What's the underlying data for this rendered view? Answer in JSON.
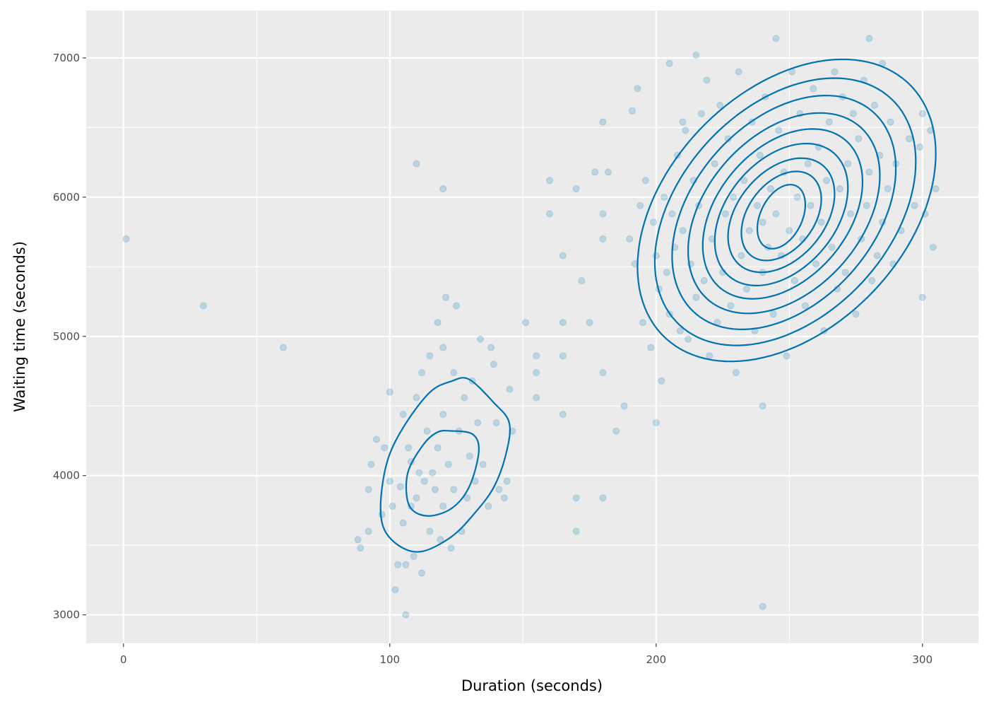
{
  "chart_data": {
    "type": "scatter",
    "title": "",
    "xlabel": "Duration (seconds)",
    "ylabel": "Waiting time (seconds)",
    "xlim": [
      -14,
      321
    ],
    "ylim": [
      2795,
      7340
    ],
    "x_ticks": [
      0,
      100,
      200,
      300
    ],
    "y_ticks": [
      3000,
      4000,
      5000,
      6000,
      7000
    ],
    "x_tick_labels": [
      "0",
      "100",
      "200",
      "300"
    ],
    "y_tick_labels": [
      "3000",
      "4000",
      "5000",
      "6000",
      "7000"
    ],
    "grid": true,
    "legend": "none",
    "colors": {
      "panel": "#EBEBEB",
      "grid": "#FFFFFF",
      "points": "#0072B2",
      "contour": "#0072B2"
    },
    "point_alpha": 0.2,
    "points": [
      [
        1,
        5700
      ],
      [
        30,
        5220
      ],
      [
        60,
        4920
      ],
      [
        110,
        6240
      ],
      [
        120,
        6060
      ],
      [
        151,
        5100
      ],
      [
        155,
        4560
      ],
      [
        155,
        4860
      ],
      [
        155,
        4740
      ],
      [
        160,
        6120
      ],
      [
        160,
        5880
      ],
      [
        165,
        5580
      ],
      [
        165,
        5100
      ],
      [
        165,
        4440
      ],
      [
        165,
        4860
      ],
      [
        170,
        3840
      ],
      [
        170,
        3600
      ],
      [
        170,
        6060
      ],
      [
        172,
        5400
      ],
      [
        175,
        5100
      ],
      [
        177,
        6180
      ],
      [
        180,
        6540
      ],
      [
        180,
        5700
      ],
      [
        180,
        5880
      ],
      [
        180,
        4740
      ],
      [
        180,
        3840
      ],
      [
        182,
        6180
      ],
      [
        185,
        4320
      ],
      [
        188,
        4500
      ],
      [
        193,
        6780
      ],
      [
        191,
        6620
      ],
      [
        200,
        4380
      ],
      [
        202,
        4680
      ],
      [
        205,
        6960
      ],
      [
        210,
        6540
      ],
      [
        215,
        7020
      ],
      [
        240,
        3060
      ],
      [
        240,
        4500
      ],
      [
        245,
        7140
      ],
      [
        280,
        7140
      ],
      [
        285,
        6960
      ],
      [
        300,
        6600
      ],
      [
        300,
        5280
      ],
      [
        304,
        5640
      ],
      [
        305,
        6060
      ],
      [
        303,
        6480
      ],
      [
        88,
        3540
      ],
      [
        89,
        3480
      ],
      [
        92,
        3900
      ],
      [
        92,
        3600
      ],
      [
        93,
        4080
      ],
      [
        95,
        4260
      ],
      [
        97,
        3720
      ],
      [
        98,
        4200
      ],
      [
        100,
        4600
      ],
      [
        100,
        3960
      ],
      [
        101,
        3780
      ],
      [
        102,
        3180
      ],
      [
        103,
        3360
      ],
      [
        104,
        3920
      ],
      [
        105,
        4440
      ],
      [
        105,
        3660
      ],
      [
        106,
        3000
      ],
      [
        106,
        3360
      ],
      [
        107,
        4200
      ],
      [
        108,
        3780
      ],
      [
        108,
        4100
      ],
      [
        109,
        3420
      ],
      [
        110,
        4560
      ],
      [
        110,
        3840
      ],
      [
        111,
        4020
      ],
      [
        112,
        4740
      ],
      [
        112,
        3300
      ],
      [
        113,
        3960
      ],
      [
        114,
        4320
      ],
      [
        115,
        3600
      ],
      [
        115,
        4860
      ],
      [
        116,
        4020
      ],
      [
        117,
        3900
      ],
      [
        118,
        4200
      ],
      [
        118,
        5100
      ],
      [
        119,
        3540
      ],
      [
        120,
        4920
      ],
      [
        120,
        3780
      ],
      [
        120,
        4440
      ],
      [
        121,
        5280
      ],
      [
        122,
        4080
      ],
      [
        123,
        3480
      ],
      [
        124,
        4740
      ],
      [
        124,
        3900
      ],
      [
        125,
        5220
      ],
      [
        126,
        4320
      ],
      [
        127,
        3600
      ],
      [
        128,
        4560
      ],
      [
        129,
        3840
      ],
      [
        130,
        4140
      ],
      [
        131,
        4680
      ],
      [
        132,
        3960
      ],
      [
        133,
        4380
      ],
      [
        134,
        4980
      ],
      [
        135,
        4080
      ],
      [
        137,
        3780
      ],
      [
        138,
        4920
      ],
      [
        139,
        4800
      ],
      [
        140,
        4380
      ],
      [
        141,
        3900
      ],
      [
        143,
        3840
      ],
      [
        144,
        3960
      ],
      [
        145,
        4620
      ],
      [
        146,
        4320
      ],
      [
        190,
        5700
      ],
      [
        192,
        5520
      ],
      [
        194,
        5940
      ],
      [
        195,
        5100
      ],
      [
        196,
        6120
      ],
      [
        198,
        4920
      ],
      [
        199,
        5820
      ],
      [
        200,
        5580
      ],
      [
        201,
        5340
      ],
      [
        203,
        6000
      ],
      [
        204,
        5460
      ],
      [
        205,
        5160
      ],
      [
        206,
        5880
      ],
      [
        207,
        5640
      ],
      [
        208,
        6300
      ],
      [
        209,
        5040
      ],
      [
        210,
        5760
      ],
      [
        211,
        6480
      ],
      [
        212,
        4980
      ],
      [
        213,
        5520
      ],
      [
        214,
        6120
      ],
      [
        215,
        5280
      ],
      [
        216,
        5940
      ],
      [
        217,
        6600
      ],
      [
        218,
        5400
      ],
      [
        219,
        6840
      ],
      [
        220,
        4860
      ],
      [
        221,
        5700
      ],
      [
        222,
        6240
      ],
      [
        223,
        5100
      ],
      [
        224,
        6660
      ],
      [
        225,
        5460
      ],
      [
        226,
        5880
      ],
      [
        227,
        6420
      ],
      [
        228,
        5220
      ],
      [
        229,
        6000
      ],
      [
        230,
        4740
      ],
      [
        231,
        6900
      ],
      [
        232,
        5580
      ],
      [
        233,
        6120
      ],
      [
        234,
        5340
      ],
      [
        235,
        5760
      ],
      [
        236,
        6540
      ],
      [
        237,
        5040
      ],
      [
        238,
        5940
      ],
      [
        239,
        6300
      ],
      [
        240,
        5460
      ],
      [
        240,
        5820
      ],
      [
        241,
        6720
      ],
      [
        242,
        5640
      ],
      [
        243,
        6060
      ],
      [
        244,
        5160
      ],
      [
        245,
        5880
      ],
      [
        246,
        6480
      ],
      [
        247,
        5580
      ],
      [
        248,
        6180
      ],
      [
        249,
        4860
      ],
      [
        250,
        5760
      ],
      [
        251,
        6900
      ],
      [
        252,
        5400
      ],
      [
        253,
        6000
      ],
      [
        254,
        6600
      ],
      [
        255,
        5700
      ],
      [
        256,
        5220
      ],
      [
        257,
        6240
      ],
      [
        258,
        5940
      ],
      [
        259,
        6780
      ],
      [
        260,
        5520
      ],
      [
        261,
        6360
      ],
      [
        262,
        5820
      ],
      [
        263,
        5040
      ],
      [
        264,
        6120
      ],
      [
        265,
        6540
      ],
      [
        266,
        5640
      ],
      [
        267,
        6900
      ],
      [
        268,
        5340
      ],
      [
        269,
        6060
      ],
      [
        270,
        6720
      ],
      [
        271,
        5460
      ],
      [
        272,
        6240
      ],
      [
        273,
        5880
      ],
      [
        274,
        6600
      ],
      [
        275,
        5160
      ],
      [
        276,
        6420
      ],
      [
        277,
        5700
      ],
      [
        278,
        6840
      ],
      [
        279,
        5940
      ],
      [
        280,
        6180
      ],
      [
        281,
        5400
      ],
      [
        282,
        6660
      ],
      [
        283,
        5580
      ],
      [
        284,
        6300
      ],
      [
        285,
        5820
      ],
      [
        287,
        6060
      ],
      [
        288,
        6540
      ],
      [
        289,
        5520
      ],
      [
        290,
        6240
      ],
      [
        292,
        5760
      ],
      [
        295,
        6420
      ],
      [
        297,
        5940
      ],
      [
        299,
        6360
      ],
      [
        301,
        5880
      ]
    ],
    "contours": {
      "small_cluster": [
        [
          [
            129.7,
            4692
          ],
          [
            139,
            4525
          ],
          [
            144.8,
            4382
          ],
          [
            143.8,
            4169
          ],
          [
            139,
            3915
          ],
          [
            131,
            3711
          ],
          [
            123,
            3559
          ],
          [
            112.5,
            3457
          ],
          [
            104.6,
            3483
          ],
          [
            98,
            3610
          ],
          [
            96.6,
            3813
          ],
          [
            99.3,
            4118
          ],
          [
            105.9,
            4372
          ],
          [
            115.2,
            4601
          ],
          [
            123,
            4677
          ]
        ],
        [
          [
            123,
            4321
          ],
          [
            131.2,
            4296
          ],
          [
            133.4,
            4169
          ],
          [
            129.7,
            3915
          ],
          [
            123,
            3762
          ],
          [
            113.8,
            3711
          ],
          [
            107.2,
            3788
          ],
          [
            106.7,
            4016
          ],
          [
            112.5,
            4220
          ],
          [
            117.8,
            4311
          ]
        ]
      ],
      "large_cluster": [
        {
          "cx": 249,
          "cy": 5905,
          "rx": 56,
          "ry": 1085
        },
        {
          "cx": 248.5,
          "cy": 5895,
          "rx": 49,
          "ry": 960
        },
        {
          "cx": 248,
          "cy": 5890,
          "rx": 42,
          "ry": 840
        },
        {
          "cx": 248,
          "cy": 5885,
          "rx": 36,
          "ry": 720
        },
        {
          "cx": 247.5,
          "cy": 5880,
          "rx": 30,
          "ry": 610
        },
        {
          "cx": 247,
          "cy": 5875,
          "rx": 25,
          "ry": 510
        },
        {
          "cx": 247,
          "cy": 5870,
          "rx": 20,
          "ry": 410
        },
        {
          "cx": 247,
          "cy": 5865,
          "rx": 15,
          "ry": 320
        },
        {
          "cx": 247,
          "cy": 5860,
          "rx": 9,
          "ry": 230
        }
      ]
    }
  }
}
